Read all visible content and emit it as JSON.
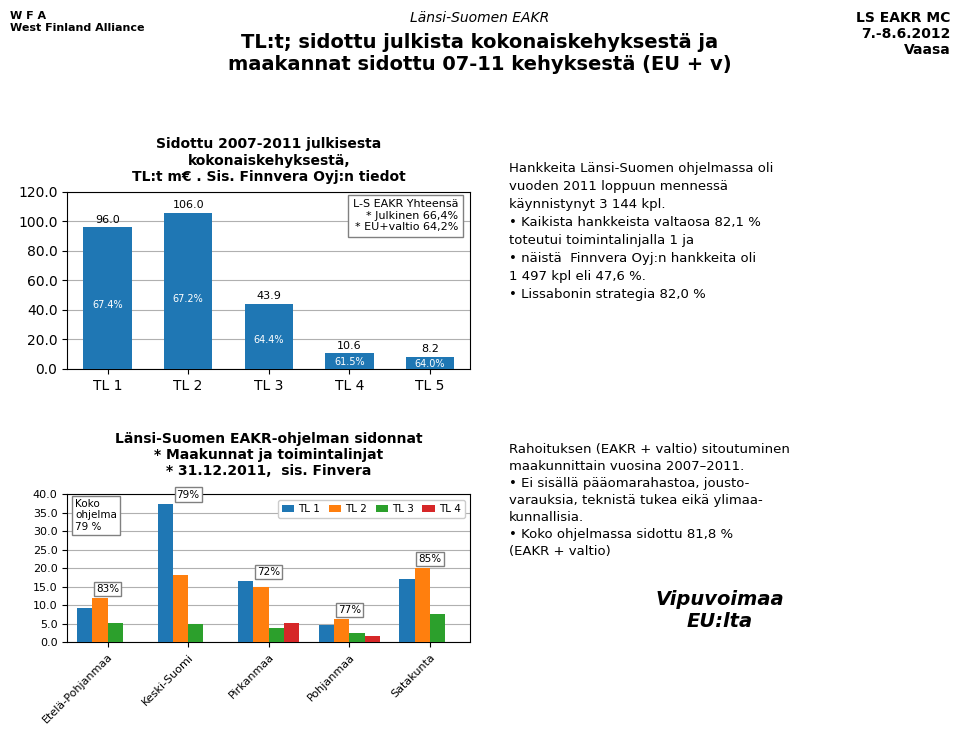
{
  "title": "TL:t; sidottu julkista kokonaiskehyksestä ja\nmaakannat sidottu 07-11 kehyksestä (EU + v)",
  "subtitle": "Länsi-Suomen EAKR",
  "annotations": [
    "W F A\nWest Finland Alliance",
    "LS EAKR MC\n7.-8.6.2012\nVaasa"
  ],
  "chart_data": [
    {
      "type": "bar",
      "title": "Sidottu 2007-2011 julkisesta\nkokonaiskehyksestä,",
      "subtitle": "TL:t m€ . Sis. Finnvera Oyj:n tiedot",
      "categories": [
        "TL 1",
        "TL 2",
        "TL 3",
        "TL 4",
        "TL 5"
      ],
      "values": [
        96.0,
        106.0,
        43.9,
        10.6,
        8.2
      ],
      "value_labels": [
        "96.0",
        "106.0",
        "43.9",
        "10.6",
        "8.2"
      ],
      "data_labels": true,
      "inner_labels": [
        "67.4%",
        "67.2%",
        "64.4%",
        "61.5%",
        "64.0%"
      ],
      "ylim": [
        0,
        120
      ],
      "yticks": [
        {
          "value": 0,
          "label": "0.0"
        },
        {
          "value": 20.0,
          "label": "20.0"
        },
        {
          "value": 40.0,
          "label": "40.0"
        },
        {
          "value": 60.0,
          "label": "60.0"
        },
        {
          "value": 80.0,
          "label": "80.0"
        },
        {
          "value": 100.0,
          "label": "100.0"
        },
        {
          "value": 120.0,
          "label": "120.0"
        }
      ],
      "grid": true,
      "annotations": [
        "L-S EAKR Yhteensä\n* Julkinen 66,4%\n* EU+valtio 64,2%",
        "Hankkeita Länsi-Suomen ohjelmassa oli\nvuoden 2011 loppuun mennessä\nkäynnistynyt 3 144 kpl.\n• Kaikista hankkeista valtaosa 82,1 %\ntoteutui toimintalinjalla 1 ja\n• näistä  Finnvera Oyj:n hankkeita oli\n1 497 kpl eli 47,6 %.\n• Lissabonin strategia 82,0 %"
      ]
    },
    {
      "type": "bar",
      "title": "Länsi-Suomen EAKR-ohjelman sidonnat",
      "subtitle": "* Maakunnat ja toimintalinjat\n* 31.12.2011,  sis. Finvera",
      "categories": [
        "Etelä-Pohjanmaa",
        "Keski-Suomi",
        "Pirkanmaa",
        "Pohjanmaa",
        "Satakunta"
      ],
      "series": [
        {
          "name": "TL 1",
          "values": [
            9.2,
            37.5,
            16.5,
            4.5,
            17.0
          ]
        },
        {
          "name": "TL 2",
          "values": [
            12.0,
            18.3,
            15.0,
            6.2,
            20.0
          ]
        },
        {
          "name": "TL 3",
          "values": [
            5.2,
            4.8,
            3.8,
            2.4,
            7.5
          ]
        },
        {
          "name": "TL 4",
          "values": [
            0.0,
            0.0,
            5.2,
            1.6,
            0.0
          ]
        }
      ],
      "group_labels": [
        "83%",
        "79%",
        "72%",
        "77%",
        "85%"
      ],
      "ylim": [
        0,
        40.0
      ],
      "yticks": [
        {
          "value": 0,
          "label": "0.0"
        },
        {
          "value": 5.0,
          "label": "5.0"
        },
        {
          "value": 10.0,
          "label": "10.0"
        },
        {
          "value": 15.0,
          "label": "15.0"
        },
        {
          "value": 20.0,
          "label": "20.0"
        },
        {
          "value": 25.0,
          "label": "25.0"
        },
        {
          "value": 30.0,
          "label": "30.0"
        },
        {
          "value": 35.0,
          "label": "35.0"
        },
        {
          "value": 40.0,
          "label": "40.0"
        }
      ],
      "grid": true,
      "legend": "upper right",
      "annotations": [
        "Koko\nohjelma\n79 %",
        "Rahoituksen (EAKR + valtio) sitoutuminen\nmaakunnittain vuosina 2007–2011.\n• Ei sisällä pääomarahastoa, jousto-\nvarauksia, teknistä tukea eikä ylimaa-\nkunnallisia.\n• Koko ohjelmassa sidottu 81,8 %\n(EAKR + valtio)",
        "Vipuvoimaa\nEU:lta"
      ]
    }
  ]
}
